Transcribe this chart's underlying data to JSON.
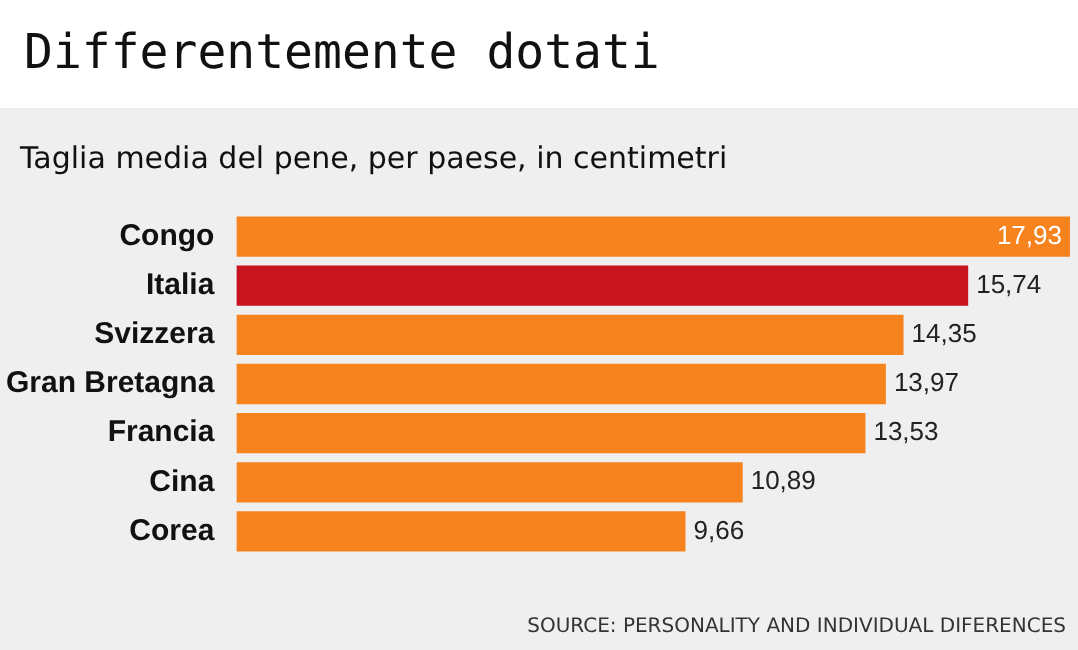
{
  "chart_data": {
    "type": "bar",
    "orientation": "horizontal",
    "title": "Differentemente dotati",
    "subtitle": "Taglia media del pene, per paese, in centimetri",
    "categories": [
      "Congo",
      "Italia",
      "Svizzera",
      "Gran Bretagna",
      "Francia",
      "Cina",
      "Corea"
    ],
    "values": [
      17.93,
      15.74,
      14.35,
      13.97,
      13.53,
      10.89,
      9.66
    ],
    "colors": [
      "#f7831f",
      "#c8141e",
      "#f7831f",
      "#f7831f",
      "#f7831f",
      "#f7831f",
      "#f7831f"
    ],
    "value_labels": [
      "17,93",
      "15,74",
      "14,35",
      "13,97",
      "13,53",
      "10,89",
      "9,66"
    ],
    "annotations": [
      "SOURCE: PERSONALITY AND INDIVIDUAL DIFERENCES"
    ],
    "legend": false
  }
}
